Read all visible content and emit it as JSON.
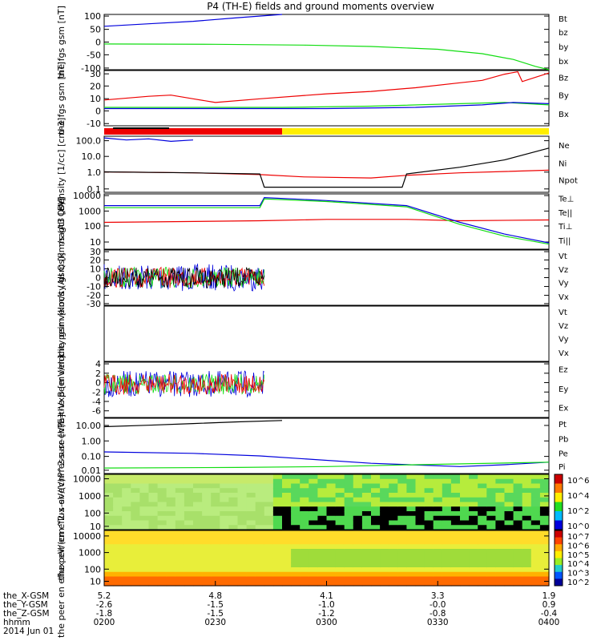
{
  "title": "P4 (TH-E) fields and ground moments overview",
  "colors": {
    "black": "#000000",
    "red": "#ee0000",
    "green": "#11dd11",
    "blue": "#0000dd",
    "yellow": "#ffee00"
  },
  "x_axis": {
    "time_ticks": [
      "0200",
      "0230",
      "0300",
      "0330",
      "0400"
    ],
    "rows": [
      {
        "label": "the_X-GSM",
        "values": [
          "5.2",
          "4.8",
          "4.1",
          "3.3",
          "1.9"
        ]
      },
      {
        "label": "the_Y-GSM",
        "values": [
          "-2.6",
          "-1.5",
          "-1.0",
          "-0.0",
          "0.9"
        ]
      },
      {
        "label": "the_Z-GSM",
        "values": [
          "-1.8",
          "-1.5",
          "-1.2",
          "-0.8",
          "-0.4"
        ]
      },
      {
        "label": "hhmm",
        "values": [
          "0200",
          "0230",
          "0300",
          "0330",
          "0400"
        ]
      }
    ],
    "date": "2014 Jun 01"
  },
  "chart_data": [
    {
      "type": "line",
      "ylabel": "the fgs gsm [nT]",
      "ylim": [
        -100,
        100
      ],
      "ticks": [
        "100",
        "50",
        "0",
        "-50",
        "-100"
      ],
      "legend": [
        {
          "name": "Bt",
          "color": "black"
        },
        {
          "name": "bz",
          "color": "red"
        },
        {
          "name": "by",
          "color": "green"
        },
        {
          "name": "bx",
          "color": "blue"
        }
      ],
      "series": [
        {
          "name": "bx",
          "color": "blue",
          "points": [
            [
              0,
              57
            ],
            [
              0.1,
              66
            ],
            [
              0.2,
              75
            ],
            [
              0.3,
              88
            ],
            [
              0.4,
              103
            ]
          ]
        },
        {
          "name": "by",
          "color": "green",
          "points": [
            [
              0,
              -7
            ],
            [
              0.25,
              -8
            ],
            [
              0.45,
              -11
            ],
            [
              0.6,
              -16
            ],
            [
              0.75,
              -26
            ],
            [
              0.85,
              -42
            ],
            [
              0.92,
              -63
            ],
            [
              0.97,
              -88
            ],
            [
              1,
              -100
            ]
          ]
        }
      ]
    },
    {
      "type": "line",
      "ylabel": "the fgs gsm [nT]",
      "ylim": [
        -15,
        30
      ],
      "ticks": [
        "30",
        "20",
        "10",
        "0",
        "-10"
      ],
      "legend": [
        {
          "name": "Bz",
          "color": "red"
        },
        {
          "name": "By",
          "color": "green"
        },
        {
          "name": "Bx",
          "color": "blue"
        }
      ],
      "series": [
        {
          "name": "Bz",
          "color": "red",
          "points": [
            [
              0,
              6
            ],
            [
              0.1,
              9
            ],
            [
              0.15,
              10
            ],
            [
              0.2,
              7
            ],
            [
              0.25,
              4
            ],
            [
              0.35,
              7
            ],
            [
              0.5,
              11
            ],
            [
              0.6,
              13
            ],
            [
              0.7,
              16
            ],
            [
              0.8,
              20
            ],
            [
              0.85,
              22
            ],
            [
              0.9,
              27
            ],
            [
              0.93,
              29
            ],
            [
              0.94,
              21
            ],
            [
              1,
              28
            ]
          ]
        },
        {
          "name": "By",
          "color": "green",
          "points": [
            [
              0,
              0
            ],
            [
              0.2,
              0
            ],
            [
              0.4,
              0
            ],
            [
              0.6,
              1
            ],
            [
              0.8,
              3
            ],
            [
              0.9,
              4
            ],
            [
              1,
              2
            ]
          ]
        },
        {
          "name": "Bx",
          "color": "blue",
          "points": [
            [
              0,
              -1
            ],
            [
              0.3,
              -1
            ],
            [
              0.5,
              -1
            ],
            [
              0.7,
              0
            ],
            [
              0.85,
              2
            ],
            [
              0.92,
              4
            ],
            [
              1,
              3
            ]
          ]
        }
      ]
    },
    {
      "type": "bar",
      "name": "mode bar",
      "segments": [
        {
          "from": 0,
          "to": 0.4,
          "color": "red"
        },
        {
          "from": 0.4,
          "to": 1,
          "color": "yellow"
        }
      ]
    },
    {
      "type": "line",
      "ylabel": "Density [1/cc] [cm-3]",
      "log": true,
      "ylim": [
        0.05,
        100
      ],
      "ticks": [
        "100.0",
        "10.0",
        "1.0",
        "0.1"
      ],
      "legend": [
        {
          "name": "Ne",
          "color": "red"
        },
        {
          "name": "Ni",
          "color": "black"
        },
        {
          "name": "Npot",
          "color": "blue"
        }
      ],
      "series": [
        {
          "name": "Ne",
          "color": "red",
          "points": [
            [
              0,
              0.8
            ],
            [
              0.2,
              0.7
            ],
            [
              0.35,
              0.55
            ],
            [
              0.45,
              0.4
            ],
            [
              0.6,
              0.35
            ],
            [
              0.68,
              0.5
            ],
            [
              0.8,
              0.7
            ],
            [
              1,
              1.0
            ]
          ]
        },
        {
          "name": "Ni",
          "color": "black",
          "points": [
            [
              0,
              0.8
            ],
            [
              0.2,
              0.7
            ],
            [
              0.35,
              0.6
            ],
            [
              0.36,
              0.1
            ],
            [
              0.5,
              0.1
            ],
            [
              0.67,
              0.1
            ],
            [
              0.68,
              0.6
            ],
            [
              0.8,
              1.5
            ],
            [
              0.9,
              4
            ],
            [
              1,
              20
            ]
          ]
        },
        {
          "name": "Npot",
          "color": "blue",
          "points": [
            [
              0,
              80
            ],
            [
              0.05,
              60
            ],
            [
              0.1,
              70
            ],
            [
              0.15,
              50
            ],
            [
              0.2,
              60
            ]
          ]
        }
      ]
    },
    {
      "type": "line",
      "ylabel": "magt3 [eV]",
      "log": true,
      "ylim": [
        5,
        10000
      ],
      "ticks": [
        "10000",
        "1000",
        "100",
        "10"
      ],
      "legend": [
        {
          "name": "Te⊥",
          "color": "red"
        },
        {
          "name": "Te||",
          "color": "black"
        },
        {
          "name": "Ti⊥",
          "color": "blue"
        },
        {
          "name": "Ti||",
          "color": "green"
        }
      ],
      "series": [
        {
          "name": "Te⊥",
          "color": "red",
          "points": [
            [
              0,
              200
            ],
            [
              0.35,
              250
            ],
            [
              0.5,
              300
            ],
            [
              0.68,
              300
            ],
            [
              0.8,
              250
            ],
            [
              1,
              280
            ]
          ]
        },
        {
          "name": "Ti⊥",
          "color": "blue",
          "points": [
            [
              0,
              2000
            ],
            [
              0.35,
              2000
            ],
            [
              0.36,
              6000
            ],
            [
              0.5,
              4000
            ],
            [
              0.68,
              2000
            ],
            [
              0.8,
              200
            ],
            [
              0.9,
              40
            ],
            [
              1,
              12
            ]
          ]
        },
        {
          "name": "Ti||",
          "color": "green",
          "points": [
            [
              0,
              1500
            ],
            [
              0.35,
              1500
            ],
            [
              0.36,
              5000
            ],
            [
              0.5,
              3500
            ],
            [
              0.68,
              1700
            ],
            [
              0.8,
              150
            ],
            [
              0.9,
              30
            ],
            [
              1,
              10
            ]
          ]
        }
      ]
    },
    {
      "type": "line",
      "ylabel": "the peir velocity gsm [km/s (All Qs)]",
      "ylim": [
        -30,
        30
      ],
      "ticks": [
        "30",
        "20",
        "10",
        "0",
        "-10",
        "-20",
        "-30"
      ],
      "legend": [
        {
          "name": "Vt",
          "color": "black"
        },
        {
          "name": "Vz",
          "color": "red"
        },
        {
          "name": "Vy",
          "color": "green"
        },
        {
          "name": "Vx",
          "color": "blue"
        }
      ],
      "noise_extent": [
        0,
        0.36
      ]
    },
    {
      "type": "line",
      "ylabel": "the peer velocity gsm [km/s (All Qs)]",
      "legend": [
        {
          "name": "Vt",
          "color": "black"
        },
        {
          "name": "Vz",
          "color": "red"
        },
        {
          "name": "Vy",
          "color": "green"
        },
        {
          "name": "Vx",
          "color": "blue"
        }
      ]
    },
    {
      "type": "line",
      "ylabel": "E=-VxB [mV/m]",
      "ylim": [
        -6,
        4
      ],
      "ticks": [
        "4",
        "2",
        "0",
        "-2",
        "-4",
        "-6"
      ],
      "legend": [
        {
          "name": "Ez",
          "color": "red"
        },
        {
          "name": "Ey",
          "color": "green"
        },
        {
          "name": "Ex",
          "color": "blue"
        }
      ],
      "noise_extent": [
        0,
        0.36
      ]
    },
    {
      "type": "line",
      "ylabel": "Pressure [nPa]",
      "log": true,
      "ylim": [
        0.005,
        30
      ],
      "ticks": [
        "10.00",
        "1.00",
        "0.10",
        "0.01"
      ],
      "legend": [
        {
          "name": "Pt",
          "color": "black"
        },
        {
          "name": "Pb",
          "color": "red"
        },
        {
          "name": "Pe",
          "color": "green"
        },
        {
          "name": "Pi",
          "color": "blue"
        }
      ],
      "series": [
        {
          "name": "Pt",
          "color": "black",
          "points": [
            [
              0,
              8
            ],
            [
              0.1,
              10
            ],
            [
              0.2,
              13
            ],
            [
              0.3,
              17
            ],
            [
              0.4,
              21
            ]
          ]
        },
        {
          "name": "Pi",
          "color": "blue",
          "points": [
            [
              0,
              0.15
            ],
            [
              0.2,
              0.12
            ],
            [
              0.35,
              0.08
            ],
            [
              0.45,
              0.05
            ],
            [
              0.6,
              0.025
            ],
            [
              0.8,
              0.015
            ],
            [
              0.9,
              0.02
            ],
            [
              1,
              0.03
            ]
          ]
        },
        {
          "name": "Pe",
          "color": "green",
          "points": [
            [
              0,
              0.012
            ],
            [
              0.3,
              0.013
            ],
            [
              0.5,
              0.015
            ],
            [
              0.7,
              0.02
            ],
            [
              1,
              0.03
            ]
          ]
        }
      ]
    },
    {
      "type": "heatmap",
      "ylabel": "the peir en eflux eV/(cm^2-s-sr-eV)",
      "log": true,
      "ylim": [
        5,
        20000
      ],
      "ticks": [
        "10000",
        "1000",
        "100",
        "10"
      ],
      "colorbar": [
        "10^6",
        "10^4",
        "10^2",
        "10^0"
      ]
    },
    {
      "type": "heatmap",
      "ylabel": "the peer en eflux eV/(cm^2-s-sr-eV)",
      "log": true,
      "ylim": [
        5,
        20000
      ],
      "ticks": [
        "10000",
        "1000",
        "100",
        "10"
      ],
      "colorbar": [
        "10^7",
        "10^6",
        "10^5",
        "10^4",
        "10^3",
        "10^2"
      ]
    }
  ]
}
